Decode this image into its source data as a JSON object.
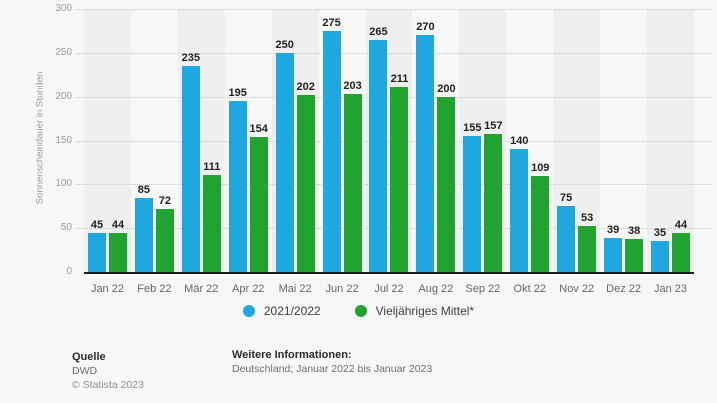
{
  "chart_data": {
    "type": "bar",
    "title": "",
    "xlabel": "",
    "ylabel": "Sonnenscheindauer in Stunden",
    "ylim": [
      0,
      300
    ],
    "yticks": [
      0,
      50,
      100,
      150,
      200,
      250,
      300
    ],
    "grid": "horizontal-dotted",
    "legend_position": "bottom-center",
    "categories": [
      "Jan 22",
      "Feb 22",
      "Mär 22",
      "Apr 22",
      "Mai 22",
      "Jun 22",
      "Jul 22",
      "Aug 22",
      "Sep 22",
      "Okt 22",
      "Nov 22",
      "Dez 22",
      "Jan 23"
    ],
    "series": [
      {
        "name": "2021/2022",
        "color": "#1ea8df",
        "values": [
          45,
          85,
          235,
          195,
          250,
          275,
          265,
          270,
          155,
          140,
          75,
          39,
          35
        ]
      },
      {
        "name": "Vieljähriges Mittel*",
        "color": "#21a32f",
        "values": [
          44,
          72,
          111,
          154,
          202,
          203,
          211,
          200,
          157,
          109,
          53,
          38,
          44
        ]
      }
    ]
  },
  "footer": {
    "source_label": "Quelle",
    "source_value": "DWD",
    "copyright": "© Statista 2023",
    "info_label": "Weitere Informationen:",
    "info_value": "Deutschland; Januar 2022 bis Januar 2023"
  }
}
